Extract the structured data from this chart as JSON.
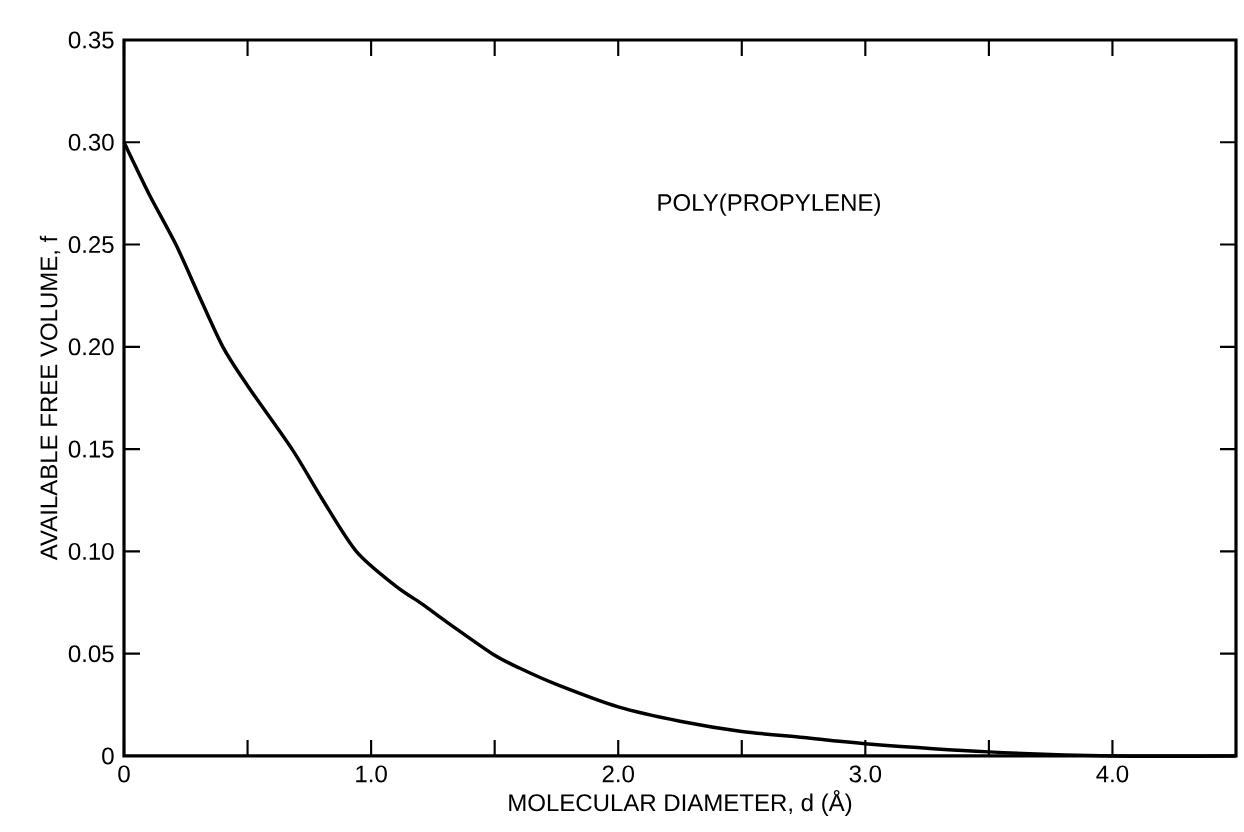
{
  "chart_data": {
    "type": "line",
    "xlabel": "MOLECULAR DIAMETER, d (Å)",
    "ylabel": "AVAILABLE FREE VOLUME, f",
    "annotations": [
      "POLY(PROPYLENE)"
    ],
    "x": [
      0,
      0.1,
      0.21,
      0.3,
      0.4,
      0.5,
      0.68,
      0.8,
      0.94,
      1.1,
      1.21,
      1.3,
      1.49,
      1.6,
      1.75,
      2.0,
      2.25,
      2.5,
      2.75,
      3.0,
      3.5,
      4.0,
      4.5
    ],
    "series": [
      {
        "color": "#000000",
        "values": [
          0.3,
          0.275,
          0.25,
          0.226,
          0.2,
          0.181,
          0.15,
          0.126,
          0.1,
          0.083,
          0.074,
          0.066,
          0.05,
          0.043,
          0.035,
          0.024,
          0.017,
          0.012,
          0.009,
          0.006,
          0.002,
          0,
          0
        ]
      }
    ],
    "xlim": [
      0,
      4.5
    ],
    "ylim": [
      0,
      0.35
    ],
    "xticks": [
      0,
      {
        "value": 0.5,
        "label": null
      },
      {
        "value": 1,
        "label": "1.0"
      },
      {
        "value": 1.5,
        "label": null
      },
      {
        "value": 2,
        "label": "2.0"
      },
      {
        "value": 2.5,
        "label": null
      },
      {
        "value": 3,
        "label": "3.0"
      },
      {
        "value": 3.5,
        "label": null
      },
      {
        "value": 4,
        "label": "4.0"
      }
    ],
    "yticks": [
      0,
      0.05,
      {
        "value": 0.1,
        "label": "0.10"
      },
      0.15,
      {
        "value": 0.2,
        "label": "0.20"
      },
      0.25,
      {
        "value": 0.3,
        "label": "0.30"
      },
      0.35
    ],
    "marker": "none",
    "line_style": "solid"
  }
}
